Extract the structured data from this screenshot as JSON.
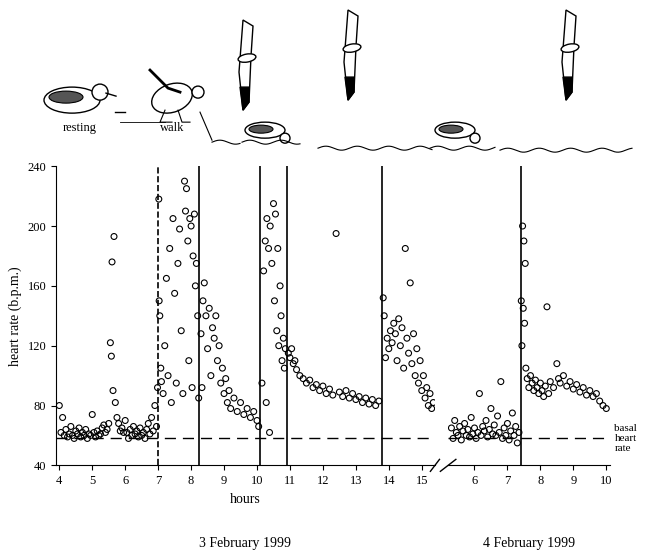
{
  "chart_data": [
    {
      "type": "scatter",
      "ylabel": "heart rate (b.p.m.)",
      "xlabel": "hours",
      "date": "3 February 1999",
      "activity_labels": [
        "resting",
        "walk"
      ],
      "marker": "o",
      "color": "black",
      "grid": false,
      "xlim": [
        3.9,
        15.4
      ],
      "xticks": [
        4,
        5,
        6,
        7,
        8,
        9,
        10,
        11,
        12,
        13,
        14,
        15
      ],
      "ylim": [
        40,
        240
      ],
      "yticks": [
        40,
        80,
        120,
        160,
        200,
        240
      ],
      "basal_heart_rate": 58,
      "events": [
        {
          "x": 7.0,
          "line_style": "dashed"
        },
        {
          "x": 8.25,
          "line_style": "solid"
        },
        {
          "x": 10.1,
          "line_style": "solid"
        },
        {
          "x": 10.9,
          "line_style": "solid"
        },
        {
          "x": 13.8,
          "line_style": "solid"
        }
      ],
      "x": [
        4.0,
        4.05,
        4.1,
        4.15,
        4.2,
        4.25,
        4.3,
        4.35,
        4.4,
        4.45,
        4.5,
        4.55,
        4.6,
        4.65,
        4.7,
        4.75,
        4.8,
        4.85,
        4.9,
        4.95,
        5.0,
        5.05,
        5.1,
        5.15,
        5.2,
        5.25,
        5.3,
        5.35,
        5.4,
        5.45,
        5.5,
        5.55,
        5.58,
        5.6,
        5.63,
        5.66,
        5.7,
        5.75,
        5.8,
        5.85,
        5.9,
        5.95,
        6.0,
        6.05,
        6.1,
        6.15,
        6.2,
        6.25,
        6.3,
        6.35,
        6.4,
        6.45,
        6.5,
        6.55,
        6.6,
        6.65,
        6.7,
        6.75,
        6.8,
        6.85,
        6.9,
        6.95,
        6.98,
        7.02,
        7.03,
        7.05,
        7.08,
        7.1,
        7.15,
        7.2,
        7.25,
        7.3,
        7.35,
        7.4,
        7.45,
        7.5,
        7.55,
        7.6,
        7.65,
        7.7,
        7.75,
        7.8,
        7.83,
        7.86,
        7.9,
        7.93,
        7.96,
        8.0,
        8.03,
        8.06,
        8.1,
        8.13,
        8.16,
        8.2,
        8.23,
        8.3,
        8.33,
        8.36,
        8.4,
        8.45,
        8.5,
        8.55,
        8.6,
        8.65,
        8.7,
        8.75,
        8.8,
        8.85,
        8.9,
        8.95,
        9.0,
        9.05,
        9.1,
        9.15,
        9.2,
        9.3,
        9.4,
        9.5,
        9.6,
        9.7,
        9.8,
        9.9,
        10.0,
        10.05,
        10.15,
        10.2,
        10.25,
        10.28,
        10.3,
        10.35,
        10.38,
        10.4,
        10.45,
        10.5,
        10.53,
        10.56,
        10.6,
        10.63,
        10.66,
        10.7,
        10.73,
        10.76,
        10.8,
        10.83,
        10.86,
        10.95,
        11.0,
        11.05,
        11.1,
        11.15,
        11.2,
        11.3,
        11.4,
        11.5,
        11.6,
        11.7,
        11.8,
        11.9,
        12.0,
        12.1,
        12.2,
        12.3,
        12.4,
        12.5,
        12.6,
        12.7,
        12.8,
        12.9,
        13.0,
        13.1,
        13.2,
        13.3,
        13.4,
        13.5,
        13.6,
        13.7,
        13.83,
        13.86,
        13.9,
        13.95,
        14.0,
        14.05,
        14.1,
        14.15,
        14.2,
        14.25,
        14.3,
        14.35,
        14.4,
        14.45,
        14.5,
        14.55,
        14.6,
        14.65,
        14.7,
        14.75,
        14.8,
        14.85,
        14.9,
        14.95,
        15.0,
        15.05,
        15.1,
        15.15,
        15.2,
        15.25,
        15.3,
        15.35
      ],
      "values": [
        80,
        62,
        72,
        60,
        64,
        59,
        61,
        66,
        60,
        58,
        63,
        61,
        65,
        59,
        62,
        60,
        64,
        58,
        61,
        60,
        74,
        62,
        59,
        63,
        60,
        61,
        65,
        67,
        62,
        64,
        68,
        122,
        113,
        176,
        90,
        193,
        82,
        72,
        68,
        63,
        65,
        62,
        70,
        62,
        58,
        64,
        60,
        66,
        61,
        63,
        59,
        65,
        60,
        62,
        58,
        64,
        68,
        61,
        72,
        63,
        80,
        66,
        92,
        218,
        150,
        140,
        105,
        96,
        88,
        120,
        165,
        100,
        185,
        82,
        205,
        155,
        95,
        175,
        198,
        130,
        88,
        230,
        210,
        225,
        190,
        110,
        205,
        200,
        92,
        180,
        208,
        160,
        175,
        140,
        85,
        128,
        92,
        150,
        162,
        140,
        118,
        145,
        100,
        132,
        125,
        140,
        110,
        120,
        95,
        105,
        88,
        98,
        82,
        90,
        78,
        85,
        76,
        82,
        74,
        78,
        72,
        76,
        70,
        66,
        95,
        170,
        190,
        82,
        205,
        185,
        62,
        200,
        175,
        215,
        150,
        208,
        130,
        185,
        120,
        160,
        140,
        110,
        125,
        105,
        118,
        115,
        112,
        118,
        108,
        110,
        104,
        100,
        98,
        95,
        97,
        92,
        94,
        90,
        93,
        88,
        91,
        87,
        195,
        89,
        86,
        90,
        85,
        88,
        84,
        86,
        82,
        85,
        81,
        84,
        80,
        83,
        152,
        140,
        112,
        125,
        118,
        130,
        122,
        135,
        128,
        110,
        138,
        120,
        132,
        105,
        185,
        125,
        115,
        162,
        108,
        128,
        100,
        118,
        95,
        110,
        90,
        100,
        85,
        92,
        80,
        88,
        78,
        82
      ]
    },
    {
      "type": "scatter",
      "date": "4 February 1999",
      "basal_label": "basal\nheart\nrate",
      "marker": "o",
      "color": "black",
      "grid": false,
      "tick_labels": "x",
      "xlim": [
        5.2,
        10.1
      ],
      "xticks": [
        6,
        7,
        8,
        9,
        10
      ],
      "ylim": [
        40,
        240
      ],
      "yticks": [
        40,
        80,
        120,
        160,
        200,
        240
      ],
      "basal_heart_rate": 58,
      "events": [
        {
          "x": 7.4,
          "line_style": "solid"
        }
      ],
      "x": [
        5.3,
        5.35,
        5.4,
        5.45,
        5.5,
        5.55,
        5.6,
        5.65,
        5.7,
        5.75,
        5.8,
        5.85,
        5.9,
        5.95,
        6.0,
        6.05,
        6.1,
        6.15,
        6.2,
        6.25,
        6.3,
        6.35,
        6.4,
        6.45,
        6.5,
        6.55,
        6.6,
        6.65,
        6.7,
        6.75,
        6.8,
        6.85,
        6.9,
        6.95,
        7.0,
        7.05,
        7.1,
        7.15,
        7.2,
        7.25,
        7.3,
        7.35,
        7.42,
        7.44,
        7.46,
        7.48,
        7.5,
        7.52,
        7.54,
        7.56,
        7.6,
        7.65,
        7.7,
        7.75,
        7.8,
        7.85,
        7.9,
        7.95,
        8.0,
        8.05,
        8.1,
        8.15,
        8.2,
        8.25,
        8.3,
        8.4,
        8.5,
        8.55,
        8.6,
        8.7,
        8.8,
        8.9,
        9.0,
        9.1,
        9.2,
        9.3,
        9.4,
        9.5,
        9.6,
        9.7,
        9.8,
        9.9,
        10.0
      ],
      "values": [
        65,
        58,
        70,
        62,
        60,
        66,
        57,
        63,
        68,
        60,
        64,
        59,
        72,
        61,
        65,
        58,
        62,
        88,
        60,
        66,
        63,
        70,
        59,
        64,
        78,
        61,
        67,
        60,
        73,
        62,
        96,
        58,
        65,
        60,
        68,
        57,
        63,
        75,
        60,
        66,
        55,
        62,
        150,
        120,
        200,
        145,
        190,
        135,
        175,
        105,
        98,
        92,
        100,
        95,
        90,
        97,
        92,
        88,
        95,
        90,
        86,
        93,
        146,
        88,
        96,
        92,
        108,
        98,
        95,
        100,
        93,
        96,
        91,
        94,
        89,
        92,
        87,
        90,
        86,
        88,
        83,
        80,
        78
      ]
    }
  ]
}
